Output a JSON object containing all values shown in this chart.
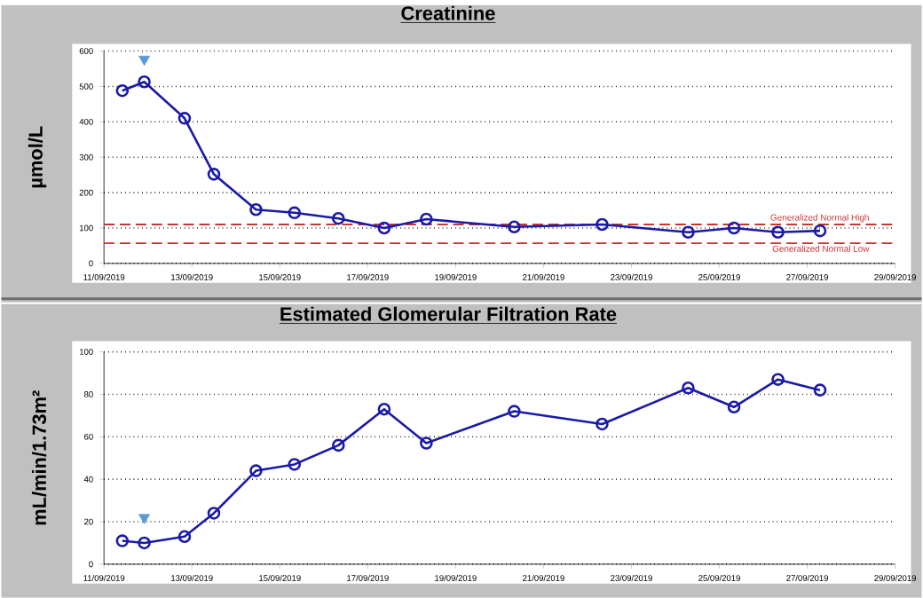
{
  "chart_data": [
    {
      "type": "line",
      "title": "Creatinine",
      "ylabel": "µmol/L",
      "grid": "y",
      "marker": "circle",
      "line_style": "solid",
      "x": [
        "2019-09-11T10:00",
        "2019-09-11T22:00",
        "2019-09-12T20:00",
        "2019-09-13T12:00",
        "2019-09-14T11:00",
        "2019-09-15T08:00",
        "2019-09-16T08:00",
        "2019-09-17T09:00",
        "2019-09-18T08:00",
        "2019-09-20T08:00",
        "2019-09-22T08:00",
        "2019-09-24T07:00",
        "2019-09-25T08:00",
        "2019-09-26T08:00",
        "2019-09-27T07:00"
      ],
      "xlim": [
        "2019-09-11",
        "2019-09-29"
      ],
      "xticks": [
        {
          "value": "2019-09-11",
          "label": "11/09/2019"
        },
        {
          "value": "2019-09-13",
          "label": "13/09/2019"
        },
        {
          "value": "2019-09-15",
          "label": "15/09/2019"
        },
        {
          "value": "2019-09-17",
          "label": "17/09/2019"
        },
        {
          "value": "2019-09-19",
          "label": "19/09/2019"
        },
        {
          "value": "2019-09-21",
          "label": "21/09/2019"
        },
        {
          "value": "2019-09-23",
          "label": "23/09/2019"
        },
        {
          "value": "2019-09-25",
          "label": "25/09/2019"
        },
        {
          "value": "2019-09-27",
          "label": "27/09/2019"
        },
        {
          "value": "2019-09-29",
          "label": "29/09/2019"
        }
      ],
      "ylim": [
        0,
        600
      ],
      "yticks": [
        0,
        100,
        200,
        300,
        400,
        500,
        600
      ],
      "series": [
        {
          "color": "#1a1aa8",
          "values": [
            488,
            513,
            410,
            252,
            152,
            143,
            127,
            100,
            125,
            103,
            110,
            88,
            100,
            88,
            92
          ]
        },
        {
          "type": "scatter",
          "marker": "triangle",
          "color": "#5b9bd5",
          "x": [
            "2019-09-11T22:00"
          ],
          "values": [
            577
          ]
        }
      ],
      "ref_lines": [
        {
          "axis": "y",
          "value": 110,
          "label": "Generalized Normal High",
          "color": "#cc3333",
          "line_style": "dashed"
        },
        {
          "axis": "y",
          "value": 57,
          "label": "Generalized Normal Low",
          "color": "#cc3333",
          "line_style": "dashed"
        }
      ]
    },
    {
      "type": "line",
      "title": "Estimated Glomerular Filtration Rate",
      "ylabel": "mL/min/1.73m²",
      "grid": "y",
      "marker": "circle",
      "line_style": "solid",
      "x": [
        "2019-09-11T10:00",
        "2019-09-11T22:00",
        "2019-09-12T20:00",
        "2019-09-13T12:00",
        "2019-09-14T11:00",
        "2019-09-15T08:00",
        "2019-09-16T08:00",
        "2019-09-17T09:00",
        "2019-09-18T08:00",
        "2019-09-20T08:00",
        "2019-09-22T08:00",
        "2019-09-24T07:00",
        "2019-09-25T08:00",
        "2019-09-26T08:00",
        "2019-09-27T07:00"
      ],
      "xlim": [
        "2019-09-11",
        "2019-09-29"
      ],
      "xticks": [
        {
          "value": "2019-09-11",
          "label": "11/09/2019"
        },
        {
          "value": "2019-09-13",
          "label": "13/09/2019"
        },
        {
          "value": "2019-09-15",
          "label": "15/09/2019"
        },
        {
          "value": "2019-09-17",
          "label": "17/09/2019"
        },
        {
          "value": "2019-09-19",
          "label": "19/09/2019"
        },
        {
          "value": "2019-09-21",
          "label": "21/09/2019"
        },
        {
          "value": "2019-09-23",
          "label": "23/09/2019"
        },
        {
          "value": "2019-09-25",
          "label": "25/09/2019"
        },
        {
          "value": "2019-09-27",
          "label": "27/09/2019"
        },
        {
          "value": "2019-09-29",
          "label": "29/09/2019"
        }
      ],
      "ylim": [
        0,
        100
      ],
      "yticks": [
        0,
        20,
        40,
        60,
        80,
        100
      ],
      "series": [
        {
          "color": "#1a1aa8",
          "values": [
            11,
            10,
            13,
            24,
            44,
            47,
            56,
            73,
            57,
            72,
            66,
            83,
            74,
            87,
            82
          ]
        },
        {
          "type": "scatter",
          "marker": "triangle",
          "color": "#5b9bd5",
          "x": [
            "2019-09-11T22:00"
          ],
          "values": [
            22
          ]
        }
      ]
    }
  ]
}
